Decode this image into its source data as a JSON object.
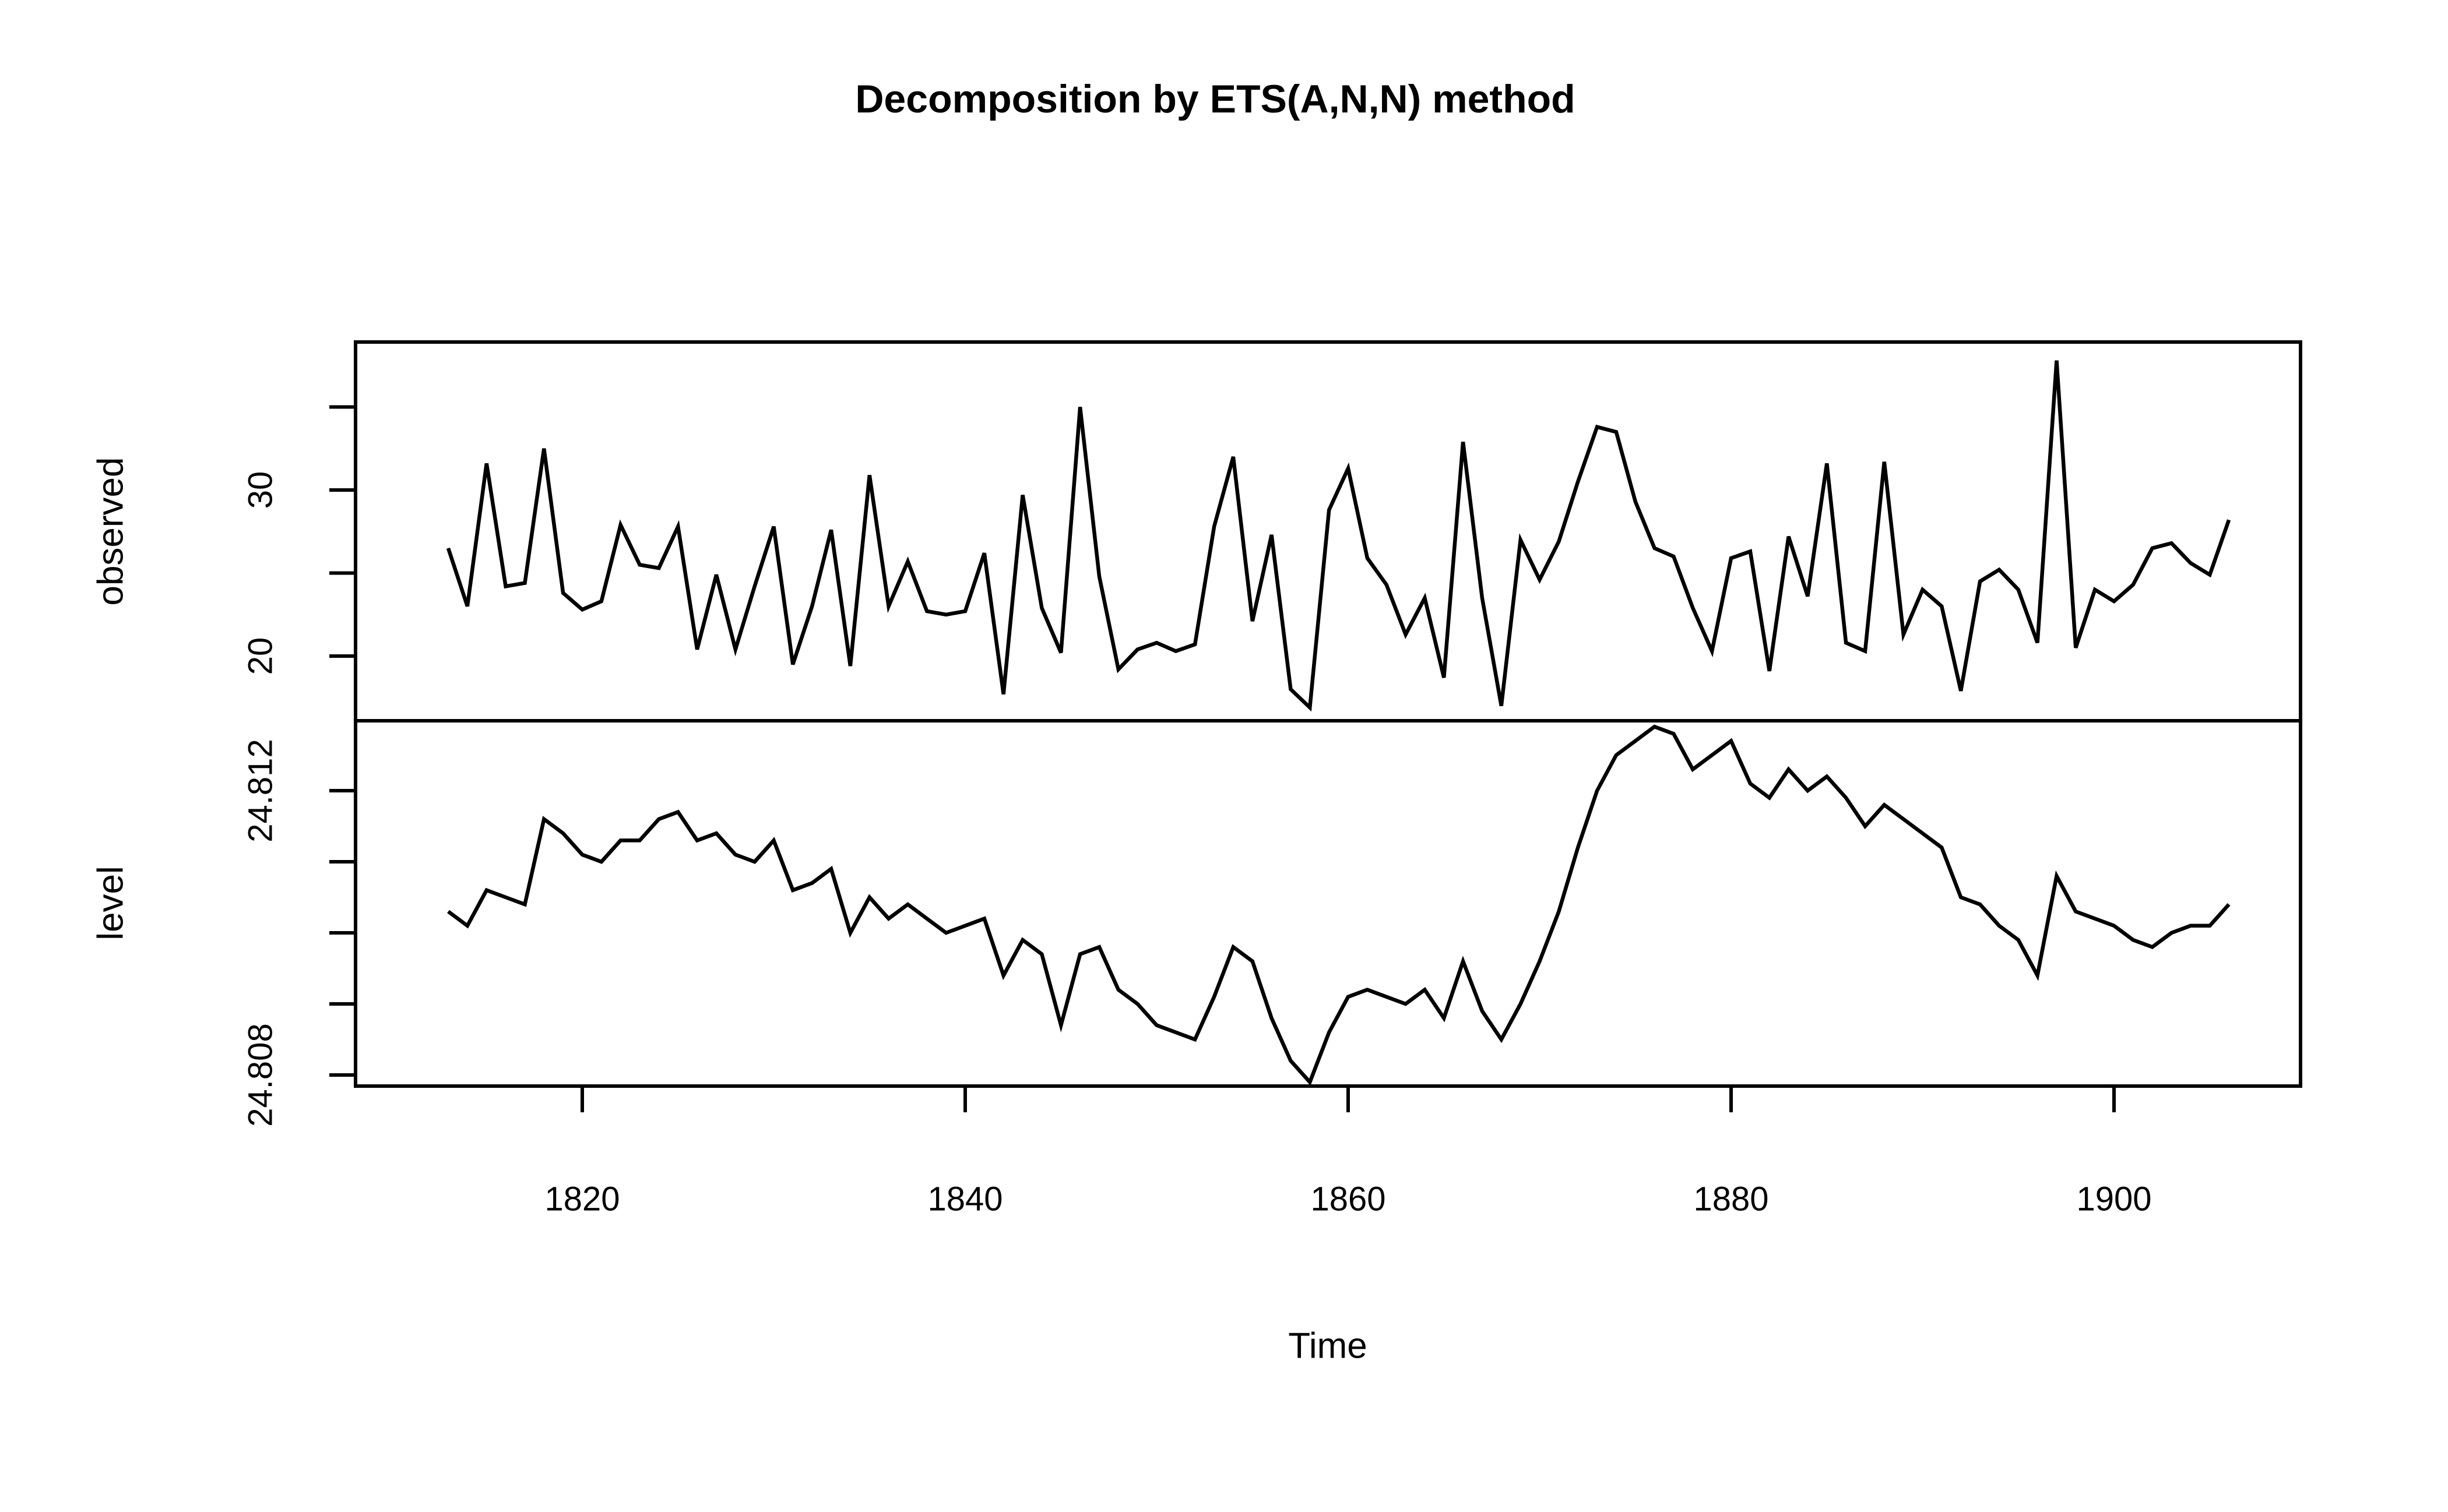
{
  "title": "Decomposition by ETS(A,N,N) method",
  "x_axis": {
    "label": "Time",
    "ticks": [
      1820,
      1840,
      1860,
      1880,
      1900
    ]
  },
  "panels": {
    "observed": {
      "label": "observed",
      "ticks": [
        {
          "v": 20,
          "label": "20"
        },
        {
          "v": 25,
          "label": ""
        },
        {
          "v": 30,
          "label": "30"
        },
        {
          "v": 35,
          "label": ""
        }
      ]
    },
    "level": {
      "label": "level",
      "ticks": [
        {
          "v": 24.808,
          "label": "24.808"
        },
        {
          "v": 24.809,
          "label": ""
        },
        {
          "v": 24.81,
          "label": ""
        },
        {
          "v": 24.811,
          "label": ""
        },
        {
          "v": 24.812,
          "label": "24.812"
        }
      ]
    }
  },
  "colors": {
    "line": "#000000",
    "frame": "#000000",
    "background": "#ffffff"
  },
  "chart_data": {
    "type": "line",
    "title": "Decomposition by ETS(A,N,N) method",
    "xlabel": "Time",
    "x_range": [
      1809.3,
      1909.7
    ],
    "years": [
      1813,
      1814,
      1815,
      1816,
      1817,
      1818,
      1819,
      1820,
      1821,
      1822,
      1823,
      1824,
      1825,
      1826,
      1827,
      1828,
      1829,
      1830,
      1831,
      1832,
      1833,
      1834,
      1835,
      1836,
      1837,
      1838,
      1839,
      1840,
      1841,
      1842,
      1843,
      1844,
      1845,
      1846,
      1847,
      1848,
      1849,
      1850,
      1851,
      1852,
      1853,
      1854,
      1855,
      1856,
      1857,
      1858,
      1859,
      1860,
      1861,
      1862,
      1863,
      1864,
      1865,
      1866,
      1867,
      1868,
      1869,
      1870,
      1871,
      1872,
      1873,
      1874,
      1875,
      1876,
      1877,
      1878,
      1879,
      1880,
      1881,
      1882,
      1883,
      1884,
      1885,
      1886,
      1887,
      1888,
      1889,
      1890,
      1891,
      1892,
      1893,
      1894,
      1895,
      1896,
      1897,
      1898,
      1899,
      1900,
      1901,
      1902,
      1903,
      1904,
      1905,
      1906
    ],
    "series": [
      {
        "name": "observed",
        "ylabel": "observed",
        "ylim": [
          16.1,
          39.2
        ],
        "values": [
          26.5,
          23.0,
          31.6,
          24.2,
          24.4,
          32.5,
          23.8,
          22.8,
          23.3,
          27.9,
          25.5,
          25.3,
          27.8,
          20.4,
          24.9,
          20.4,
          24.2,
          27.8,
          19.5,
          23.0,
          27.6,
          19.4,
          30.9,
          23.0,
          25.7,
          22.7,
          22.5,
          22.7,
          26.2,
          17.7,
          29.7,
          22.9,
          20.2,
          35.0,
          24.8,
          19.2,
          20.4,
          20.8,
          20.3,
          20.7,
          27.8,
          32.0,
          22.1,
          27.3,
          18.0,
          16.9,
          28.8,
          31.3,
          25.9,
          24.3,
          21.3,
          23.5,
          18.7,
          32.9,
          23.5,
          17.0,
          27.0,
          24.6,
          26.9,
          30.5,
          33.8,
          33.5,
          29.3,
          26.5,
          26.0,
          22.9,
          20.3,
          25.9,
          26.3,
          19.1,
          27.2,
          23.6,
          31.6,
          20.8,
          20.3,
          31.7,
          21.3,
          24.0,
          23.0,
          17.9,
          24.5,
          25.2,
          24.0,
          20.8,
          37.8,
          20.5,
          24.0,
          23.3,
          24.3,
          26.5,
          26.8,
          25.6,
          24.9,
          28.2
        ]
      },
      {
        "name": "level",
        "ylabel": "level",
        "ylim": [
          24.8078,
          24.813
        ],
        "values": [
          24.8103,
          24.8101,
          24.8106,
          24.8105,
          24.8104,
          24.8116,
          24.8114,
          24.8111,
          24.811,
          24.8113,
          24.8113,
          24.8116,
          24.8117,
          24.8113,
          24.8114,
          24.8111,
          24.811,
          24.8113,
          24.8106,
          24.8107,
          24.8109,
          24.81,
          24.8105,
          24.8102,
          24.8104,
          24.8102,
          24.81,
          24.8101,
          24.8102,
          24.8094,
          24.8099,
          24.8097,
          24.8087,
          24.8097,
          24.8098,
          24.8092,
          24.809,
          24.8087,
          24.8086,
          24.8085,
          24.8091,
          24.8098,
          24.8096,
          24.8088,
          24.8082,
          24.8079,
          24.8086,
          24.8091,
          24.8092,
          24.8091,
          24.809,
          24.8092,
          24.8088,
          24.8096,
          24.8089,
          24.8085,
          24.809,
          24.8096,
          24.8103,
          24.8112,
          24.812,
          24.8125,
          24.8127,
          24.8129,
          24.8128,
          24.8123,
          24.8125,
          24.8127,
          24.8121,
          24.8119,
          24.8123,
          24.812,
          24.8122,
          24.8119,
          24.8115,
          24.8118,
          24.8116,
          24.8114,
          24.8112,
          24.8105,
          24.8104,
          24.8101,
          24.8099,
          24.8094,
          24.8108,
          24.8103,
          24.8102,
          24.8101,
          24.8099,
          24.8098,
          24.81,
          24.8101,
          24.8101,
          24.8104
        ]
      }
    ],
    "legend": "none",
    "grid": "off"
  }
}
